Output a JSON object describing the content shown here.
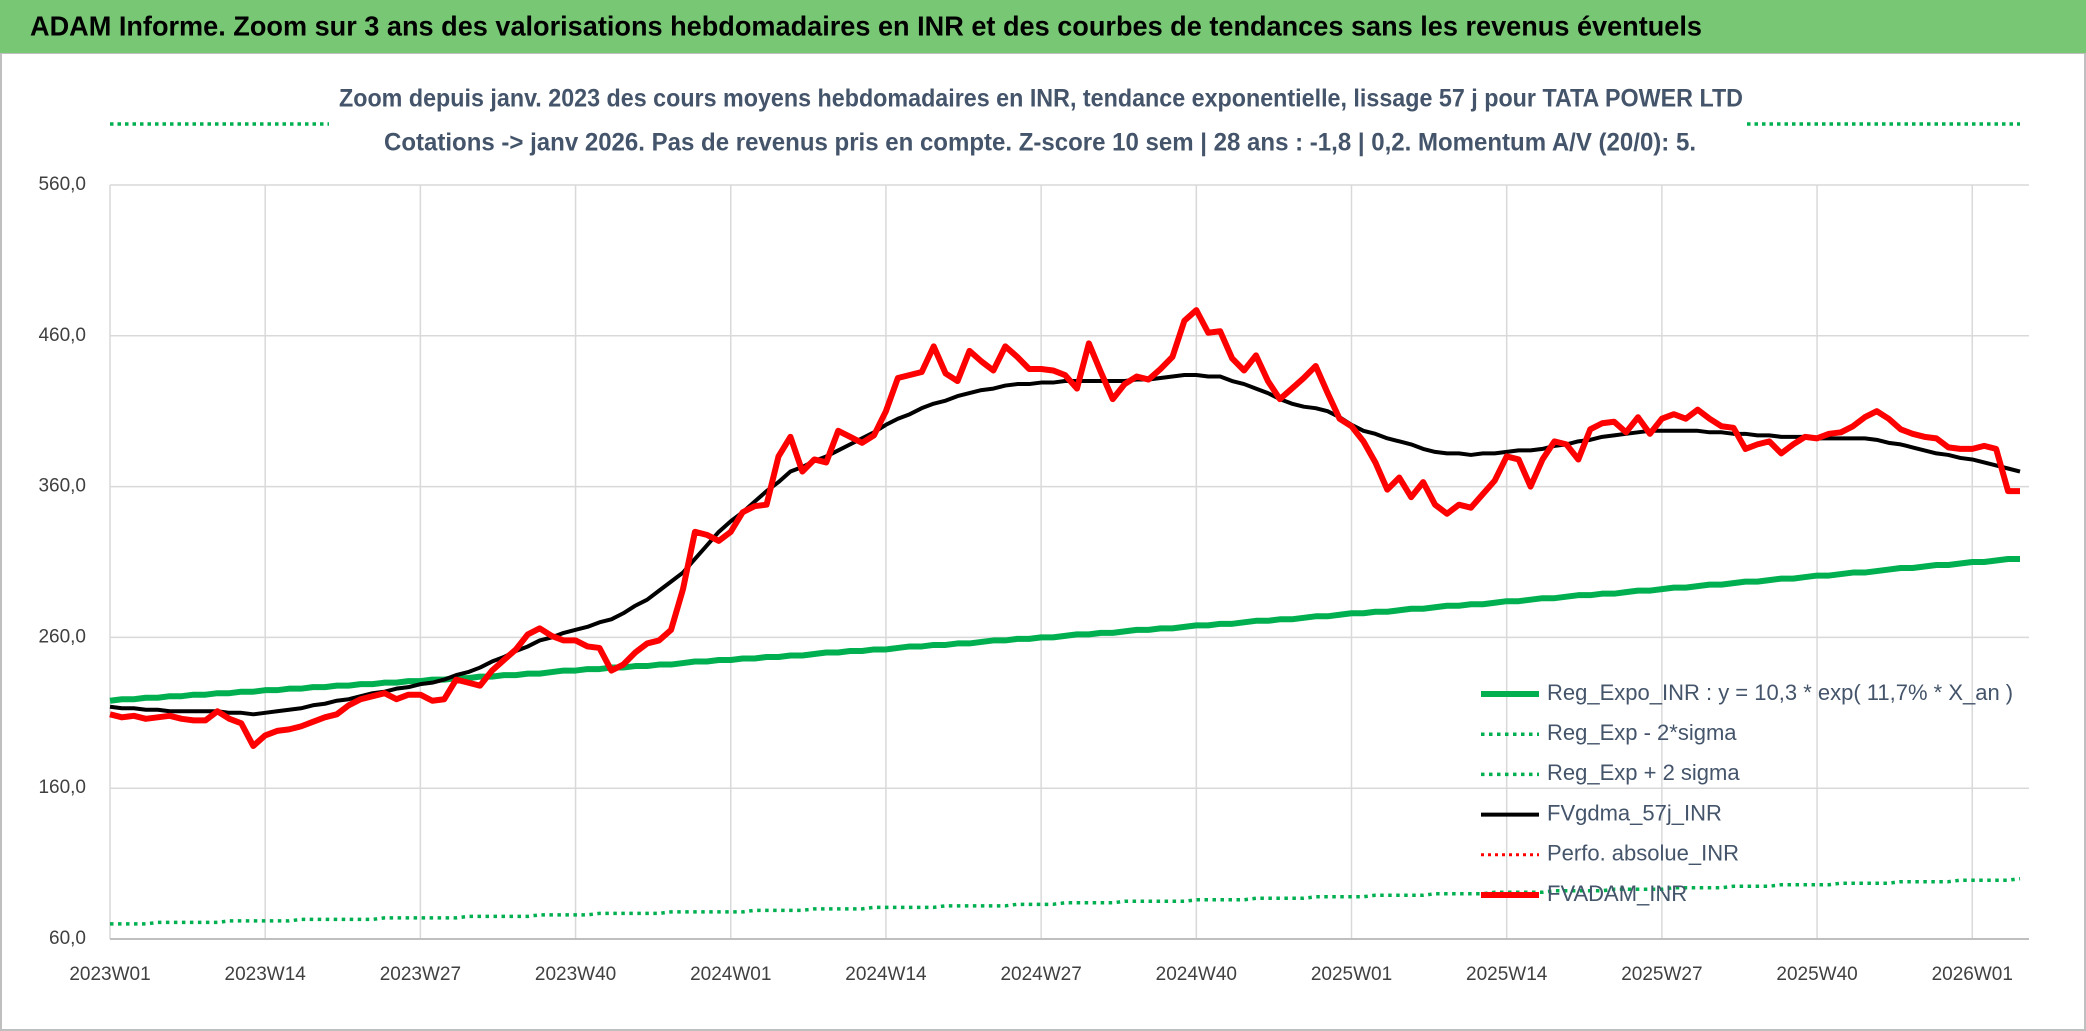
{
  "header": {
    "title": "ADAM Informe. Zoom sur 3 ans des valorisations hebdomadaires en INR et des courbes de tendances sans les revenus éventuels"
  },
  "chart_data": {
    "type": "line",
    "title": "Zoom depuis janv. 2023 des cours moyens hebdomadaires en INR, tendance exponentielle, lissage 57 j pour TATA POWER LTD",
    "subtitle": "Cotations -> janv 2026. Pas de revenus pris en compte. Z-score 10 sem | 28 ans : -1,8 | 0,2. Momentum A/V (20/0): 5.",
    "categories": [
      "2023W01",
      null,
      null,
      null,
      null,
      null,
      null,
      null,
      null,
      null,
      null,
      null,
      null,
      "2023W14",
      null,
      null,
      null,
      null,
      null,
      null,
      null,
      null,
      null,
      null,
      null,
      null,
      "2023W27",
      null,
      null,
      null,
      null,
      null,
      null,
      null,
      null,
      null,
      null,
      null,
      null,
      "2023W40",
      null,
      null,
      null,
      null,
      null,
      null,
      null,
      null,
      null,
      null,
      null,
      null,
      "2024W01",
      null,
      null,
      null,
      null,
      null,
      null,
      null,
      null,
      null,
      null,
      null,
      null,
      "2024W14",
      null,
      null,
      null,
      null,
      null,
      null,
      null,
      null,
      null,
      null,
      null,
      null,
      "2024W27",
      null,
      null,
      null,
      null,
      null,
      null,
      null,
      null,
      null,
      null,
      null,
      null,
      "2024W40",
      null,
      null,
      null,
      null,
      null,
      null,
      null,
      null,
      null,
      null,
      null,
      null,
      "2025W01",
      null,
      null,
      null,
      null,
      null,
      null,
      null,
      null,
      null,
      null,
      null,
      null,
      "2025W14",
      null,
      null,
      null,
      null,
      null,
      null,
      null,
      null,
      null,
      null,
      null,
      null,
      "2025W27",
      null,
      null,
      null,
      null,
      null,
      null,
      null,
      null,
      null,
      null,
      null,
      null,
      "2025W40",
      null,
      null,
      null,
      null,
      null,
      null,
      null,
      null,
      null,
      null,
      null,
      null,
      "2026W01",
      null,
      null,
      null,
      null
    ],
    "ylim": [
      60,
      560
    ],
    "yticks": [
      {
        "value": 60,
        "label": "60,0"
      },
      {
        "value": 160,
        "label": "160,0"
      },
      {
        "value": 260,
        "label": "260,0"
      },
      {
        "value": 360,
        "label": "360,0"
      },
      {
        "value": 460,
        "label": "460,0"
      },
      {
        "value": 560,
        "label": "560,0"
      }
    ],
    "grid": true,
    "legend": "lower right",
    "series": [
      {
        "name": "Reg_Expo_INR : y = 10,3 * exp( 11,7% *  X_an )",
        "color": "#00b050",
        "width": 6,
        "dash": "solid",
        "values": [
          218,
          219,
          219,
          220,
          220,
          221,
          221,
          222,
          222,
          223,
          223,
          224,
          224,
          225,
          225,
          226,
          226,
          227,
          227,
          228,
          228,
          229,
          229,
          230,
          230,
          231,
          231,
          232,
          232,
          233,
          233,
          234,
          234,
          235,
          235,
          236,
          236,
          237,
          238,
          238,
          239,
          239,
          240,
          240,
          241,
          241,
          242,
          242,
          243,
          244,
          244,
          245,
          245,
          246,
          246,
          247,
          247,
          248,
          248,
          249,
          250,
          250,
          251,
          251,
          252,
          252,
          253,
          254,
          254,
          255,
          255,
          256,
          256,
          257,
          258,
          258,
          259,
          259,
          260,
          260,
          261,
          262,
          262,
          263,
          263,
          264,
          265,
          265,
          266,
          266,
          267,
          268,
          268,
          269,
          269,
          270,
          271,
          271,
          272,
          272,
          273,
          274,
          274,
          275,
          276,
          276,
          277,
          277,
          278,
          279,
          279,
          280,
          281,
          281,
          282,
          282,
          283,
          284,
          284,
          285,
          286,
          286,
          287,
          288,
          288,
          289,
          289,
          290,
          291,
          291,
          292,
          293,
          293,
          294,
          295,
          295,
          296,
          297,
          297,
          298,
          299,
          299,
          300,
          301,
          301,
          302,
          303,
          303,
          304,
          305,
          306,
          306,
          307,
          308,
          308,
          309,
          310,
          310,
          311,
          312,
          312
        ]
      },
      {
        "name": "Reg_Exp - 2*sigma",
        "color": "#00b050",
        "width": 3.5,
        "dash": "dotted",
        "values": [
          70,
          70,
          70,
          70,
          71,
          71,
          71,
          71,
          71,
          71,
          72,
          72,
          72,
          72,
          72,
          72,
          73,
          73,
          73,
          73,
          73,
          73,
          73,
          74,
          74,
          74,
          74,
          74,
          74,
          74,
          75,
          75,
          75,
          75,
          75,
          75,
          76,
          76,
          76,
          76,
          76,
          77,
          77,
          77,
          77,
          77,
          77,
          78,
          78,
          78,
          78,
          78,
          78,
          78,
          79,
          79,
          79,
          79,
          79,
          80,
          80,
          80,
          80,
          80,
          81,
          81,
          81,
          81,
          81,
          81,
          82,
          82,
          82,
          82,
          82,
          82,
          83,
          83,
          83,
          83,
          84,
          84,
          84,
          84,
          84,
          85,
          85,
          85,
          85,
          85,
          85,
          86,
          86,
          86,
          86,
          86,
          87,
          87,
          87,
          87,
          87,
          88,
          88,
          88,
          88,
          88,
          89,
          89,
          89,
          89,
          89,
          90,
          90,
          90,
          90,
          90,
          91,
          91,
          91,
          91,
          91,
          92,
          92,
          92,
          92,
          92,
          93,
          93,
          93,
          93,
          93,
          94,
          94,
          94,
          94,
          94,
          95,
          95,
          95,
          95,
          96,
          96,
          96,
          96,
          96,
          97,
          97,
          97,
          97,
          97,
          98,
          98,
          98,
          98,
          98,
          99,
          99,
          99,
          99,
          99,
          100
        ]
      },
      {
        "name": "Reg_Exp + 2 sigma",
        "color": "#00b050",
        "width": 3.5,
        "dash": "dotted",
        "values": [
          null,
          null,
          null,
          null,
          null,
          null,
          null,
          null,
          null,
          null,
          null,
          null,
          null,
          null,
          null,
          null,
          null,
          null,
          null,
          null,
          null,
          null,
          null,
          null,
          null,
          null,
          null,
          null,
          null,
          null,
          null,
          null,
          null,
          null,
          null,
          null,
          null,
          null,
          null,
          null,
          null,
          null,
          null,
          null,
          null,
          null,
          null,
          null,
          null,
          null,
          null,
          null,
          null,
          null,
          null,
          null,
          null,
          null,
          null,
          null,
          null,
          null,
          null,
          null,
          null,
          null,
          null,
          null,
          null,
          null,
          null,
          null,
          null,
          null,
          null,
          null,
          null,
          null,
          null,
          null,
          null,
          null,
          null,
          null,
          null,
          null,
          null,
          null,
          null,
          null,
          null,
          null,
          null,
          null,
          null,
          null,
          null,
          null,
          null,
          null,
          null,
          null,
          null,
          null,
          null,
          null,
          null,
          null,
          null,
          null,
          null,
          null,
          null,
          null,
          null,
          null,
          null,
          null,
          null,
          null,
          null,
          null,
          null,
          null,
          null,
          null,
          null,
          null,
          null,
          null,
          null,
          null,
          null,
          null,
          null,
          null,
          null,
          null,
          null,
          null,
          null,
          null,
          null,
          null,
          null,
          null,
          null,
          null,
          null,
          null,
          null,
          null,
          null,
          null,
          null,
          null,
          null,
          null,
          null,
          null,
          null
        ]
      },
      {
        "name": "FVgdma_57j_INR",
        "color": "#000000",
        "width": 4,
        "dash": "solid",
        "values": [
          214,
          213,
          213,
          212,
          212,
          211,
          211,
          211,
          211,
          211,
          210,
          210,
          209,
          210,
          211,
          212,
          213,
          215,
          216,
          218,
          219,
          221,
          223,
          224,
          226,
          227,
          229,
          230,
          232,
          235,
          237,
          240,
          244,
          247,
          251,
          254,
          258,
          260,
          263,
          265,
          267,
          270,
          272,
          276,
          281,
          285,
          291,
          297,
          303,
          312,
          321,
          330,
          337,
          343,
          350,
          357,
          363,
          370,
          373,
          377,
          380,
          384,
          388,
          392,
          396,
          401,
          405,
          408,
          412,
          415,
          417,
          420,
          422,
          424,
          425,
          427,
          428,
          428,
          429,
          429,
          430,
          430,
          430,
          430,
          430,
          430,
          431,
          431,
          432,
          433,
          434,
          434,
          433,
          433,
          430,
          428,
          425,
          422,
          418,
          415,
          413,
          412,
          410,
          406,
          401,
          397,
          395,
          392,
          390,
          388,
          385,
          383,
          382,
          382,
          381,
          382,
          382,
          383,
          384,
          384,
          385,
          387,
          388,
          390,
          391,
          393,
          394,
          395,
          396,
          397,
          397,
          397,
          397,
          397,
          396,
          396,
          395,
          395,
          394,
          394,
          393,
          393,
          393,
          392,
          392,
          392,
          392,
          392,
          391,
          389,
          388,
          386,
          384,
          382,
          381,
          379,
          378,
          376,
          374,
          372,
          370
        ]
      },
      {
        "name": "Perfo. absolue_INR",
        "color": "#ff0000",
        "width": 3,
        "dash": "dotted",
        "values": [
          null,
          null,
          null,
          null,
          null,
          null,
          null,
          null,
          null,
          null,
          null,
          null,
          null,
          null,
          null,
          null,
          null,
          null,
          null,
          null,
          null,
          null,
          null,
          null,
          null,
          null,
          null,
          null,
          null,
          null,
          null,
          null,
          null,
          null,
          null,
          null,
          null,
          null,
          null,
          null,
          null,
          null,
          null,
          null,
          null,
          null,
          null,
          null,
          null,
          null,
          null,
          null,
          null,
          null,
          null,
          null,
          null,
          null,
          null,
          null,
          null,
          null,
          null,
          null,
          null,
          null,
          null,
          null,
          null,
          null,
          null,
          null,
          null,
          null,
          null,
          null,
          null,
          null,
          null,
          null,
          null,
          null,
          null,
          null,
          null,
          null,
          null,
          null,
          null,
          null,
          null,
          null,
          null,
          null,
          null,
          null,
          null,
          null,
          null,
          null,
          null,
          null,
          null,
          null,
          null,
          null,
          null,
          null,
          null,
          null,
          null,
          null,
          null,
          null,
          null,
          null,
          null,
          null,
          null,
          null,
          null,
          null,
          null,
          null,
          null,
          null,
          null,
          null,
          null,
          null,
          null,
          null,
          null,
          null,
          null,
          null,
          null,
          null,
          null,
          null,
          null,
          null,
          null,
          null,
          null,
          null,
          null,
          null,
          null,
          null,
          null,
          null,
          null,
          null,
          null,
          null,
          null,
          null,
          null,
          null,
          null
        ]
      },
      {
        "name": "FVADAM_INR",
        "color": "#ff0000",
        "width": 6,
        "dash": "solid",
        "values": [
          209,
          207,
          208,
          206,
          207,
          208,
          206,
          205,
          205,
          211,
          206,
          203,
          188,
          195,
          198,
          199,
          201,
          204,
          207,
          209,
          215,
          219,
          221,
          223,
          219,
          222,
          222,
          218,
          219,
          232,
          230,
          228,
          238,
          245,
          252,
          262,
          266,
          261,
          258,
          258,
          254,
          253,
          238,
          242,
          250,
          256,
          258,
          265,
          292,
          330,
          328,
          324,
          330,
          343,
          347,
          348,
          380,
          393,
          370,
          378,
          376,
          397,
          393,
          389,
          394,
          410,
          432,
          434,
          436,
          453,
          435,
          430,
          450,
          443,
          437,
          453,
          446,
          438,
          438,
          437,
          434,
          425,
          455,
          436,
          418,
          428,
          433,
          431,
          438,
          446,
          470,
          477,
          462,
          463,
          445,
          437,
          447,
          430,
          418,
          425,
          432,
          440,
          422,
          405,
          400,
          390,
          376,
          358,
          366,
          353,
          363,
          348,
          342,
          348,
          346,
          355,
          364,
          380,
          378,
          360,
          378,
          390,
          388,
          378,
          398,
          402,
          403,
          396,
          406,
          395,
          405,
          408,
          405,
          411,
          405,
          400,
          399,
          385,
          388,
          390,
          382,
          388,
          393,
          392,
          395,
          396,
          400,
          406,
          410,
          405,
          398,
          395,
          393,
          392,
          386,
          385,
          385,
          387,
          385,
          357,
          357
        ]
      }
    ]
  }
}
